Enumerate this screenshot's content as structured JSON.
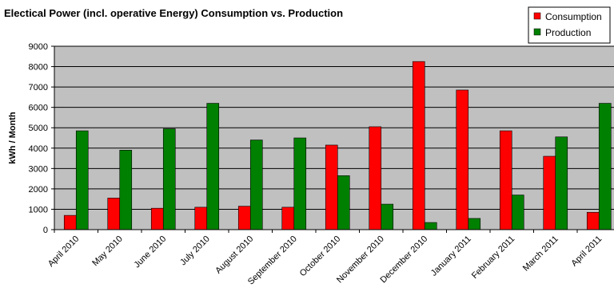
{
  "chart_data": {
    "type": "bar",
    "title": "Electical Power (incl. operative Energy) Consumption vs. Production",
    "ylabel": "kWh / Month",
    "xlabel": "",
    "ylim": [
      0,
      9000
    ],
    "yticks": [
      0,
      1000,
      2000,
      3000,
      4000,
      5000,
      6000,
      7000,
      8000,
      9000
    ],
    "grid": true,
    "legend_position": "top-right",
    "categories": [
      "April 2010",
      "May 2010",
      "June 2010",
      "July 2010",
      "August 2010",
      "September 2010",
      "October 2010",
      "November 2010",
      "December 2010",
      "January 2011",
      "February 2011",
      "March 2011",
      "April 2011"
    ],
    "series": [
      {
        "name": "Consumption",
        "color": "#ff0000",
        "values": [
          700,
          1550,
          1050,
          1100,
          1150,
          1100,
          4150,
          5050,
          8250,
          6850,
          4850,
          3600,
          850
        ]
      },
      {
        "name": "Production",
        "color": "#008000",
        "values": [
          4850,
          3900,
          4950,
          6200,
          4400,
          4500,
          2650,
          1250,
          350,
          550,
          1700,
          4550,
          6200
        ]
      }
    ],
    "plot_background": "#c0c0c0"
  }
}
